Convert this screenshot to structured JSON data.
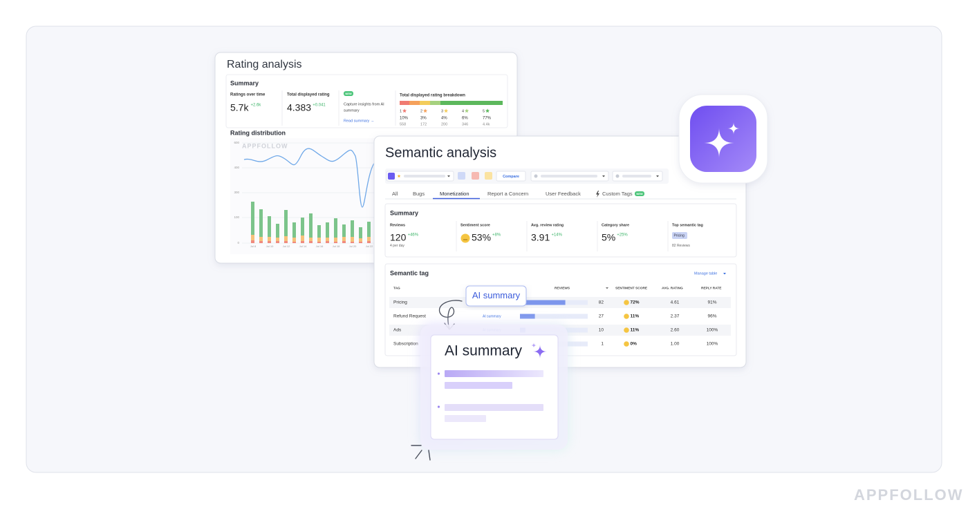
{
  "rating_analysis": {
    "title": "Rating analysis",
    "summary": {
      "title": "Summary",
      "metrics": [
        {
          "label": "Ratings over time",
          "value": "5.7k",
          "change": "+2.6k"
        },
        {
          "label": "Total displayed rating",
          "value": "4.383",
          "change": "+0.041"
        }
      ],
      "ai_promo": {
        "badge": "NEW",
        "text": [
          "Capture insights from AI",
          "summary"
        ],
        "link": "Read summary →"
      },
      "breakdown": {
        "title": "Total displayed rating breakdown",
        "stars": [
          "1",
          "2",
          "3",
          "4",
          "5"
        ],
        "percents": [
          "10%",
          "3%",
          "4%",
          "6%",
          "77%"
        ],
        "counts": [
          "558",
          "172",
          "200",
          "346",
          "4.4k"
        ]
      }
    },
    "distribution": {
      "title": "Rating distribution",
      "watermark": "APPFOLLOW",
      "yticks": [
        "600",
        "400",
        "300",
        "100",
        "0"
      ],
      "xticks": [
        "Jul 8",
        "Jul 10",
        "Jul 12",
        "Jul 14",
        "Jul 16",
        "Jul 18",
        "Jul 20",
        "Jul 22"
      ]
    }
  },
  "semantic_analysis": {
    "title": "Semantic analysis",
    "compare": "Compare",
    "tabs": [
      "All",
      "Bugs",
      "Monetization",
      "Report a Concern",
      "User Feedback",
      "Custom Tags"
    ],
    "tab_badge": "NEW",
    "summary": {
      "title": "Summary",
      "metrics": [
        {
          "label": "Reviews",
          "value": "120",
          "change": "+46%",
          "note": "4 per day"
        },
        {
          "label": "Sentiment score",
          "value": "53%",
          "change": "+8%"
        },
        {
          "label": "Avg. review rating",
          "value": "3.91",
          "change": "+14%"
        },
        {
          "label": "Category share",
          "value": "5%",
          "change": "+25%"
        },
        {
          "label": "Top semantic tag",
          "tag": "Pricing",
          "note": "82 Reviews"
        }
      ]
    },
    "tag_table": {
      "title": "Semantic tag",
      "manage": "Manage table",
      "columns": [
        "TAG",
        "REVIEWS",
        "SENTIMENT SCORE",
        "AVG. RATING",
        "REPLY RATE"
      ],
      "rows": [
        {
          "tag": "Pricing",
          "reviews": "82",
          "sentiment": "72%",
          "rating": "4.61",
          "reply": "91%"
        },
        {
          "tag": "Refund Request",
          "ai_link": "AI summary",
          "reviews": "27",
          "sentiment": "11%",
          "rating": "2.37",
          "reply": "96%"
        },
        {
          "tag": "Ads",
          "ai_link": "AI summary",
          "reviews": "10",
          "sentiment": "11%",
          "rating": "2.60",
          "reply": "100%"
        },
        {
          "tag": "Subscription",
          "reviews": "1",
          "sentiment": "0%",
          "rating": "1.00",
          "reply": "100%"
        }
      ]
    }
  },
  "ai_callout": "AI summary",
  "ai_card": {
    "title": "AI summary"
  },
  "brand": "APPFOLLOW"
}
